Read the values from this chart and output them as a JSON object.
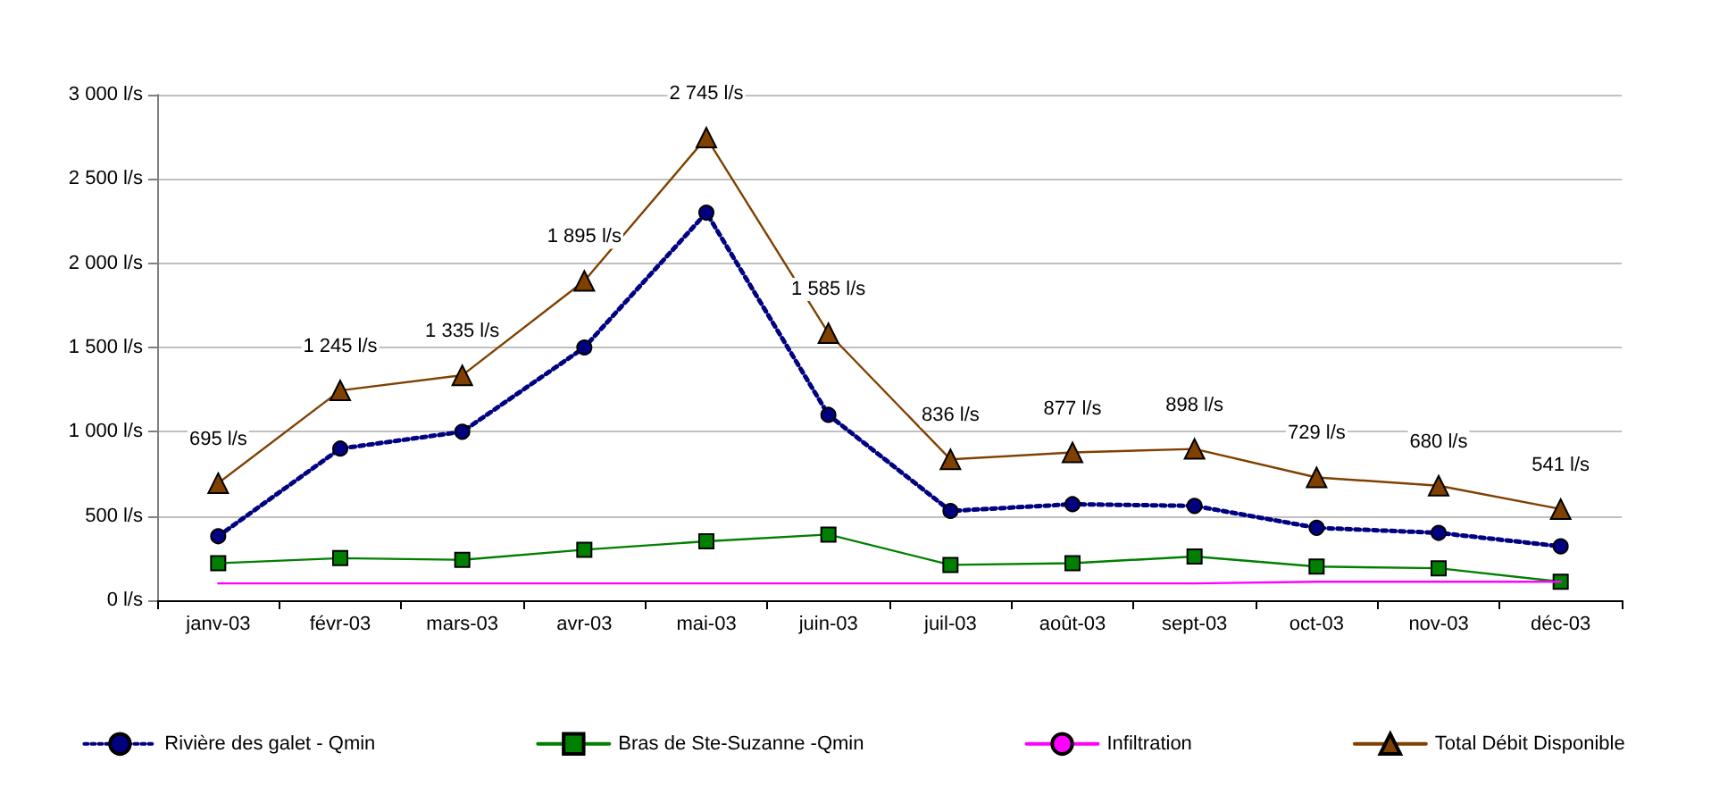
{
  "chart_data": {
    "type": "line",
    "categories": [
      "janv-03",
      "févr-03",
      "mars-03",
      "avr-03",
      "mai-03",
      "juin-03",
      "juil-03",
      "août-03",
      "sept-03",
      "oct-03",
      "nov-03",
      "déc-03"
    ],
    "series": [
      {
        "name": "Rivière des galet - Qmin",
        "color": "#000080",
        "marker": "circle",
        "line_style": "dotted",
        "values": [
          380,
          900,
          1000,
          1500,
          2300,
          1100,
          530,
          570,
          560,
          430,
          400,
          320
        ]
      },
      {
        "name": "Bras de Ste-Suzanne -Qmin",
        "color": "#008000",
        "marker": "square",
        "line_style": "solid",
        "values": [
          220,
          250,
          240,
          300,
          350,
          390,
          210,
          220,
          260,
          200,
          190,
          110
        ]
      },
      {
        "name": "Infiltration",
        "color": "#ff00ff",
        "marker": "none",
        "line_style": "solid",
        "values": [
          100,
          100,
          100,
          100,
          100,
          100,
          100,
          100,
          100,
          110,
          110,
          110
        ]
      },
      {
        "name": "Total Débit Disponible",
        "color": "#804000",
        "marker": "triangle",
        "line_style": "solid",
        "values": [
          695,
          1245,
          1335,
          1895,
          2745,
          1585,
          836,
          877,
          898,
          729,
          680,
          541
        ],
        "value_labels": [
          "695 l/s",
          "1 245 l/s",
          "1 335 l/s",
          "1 895 l/s",
          "2 745 l/s",
          "1 585 l/s",
          "836 l/s",
          "877 l/s",
          "898 l/s",
          "729 l/s",
          "680 l/s",
          "541 l/s"
        ]
      }
    ],
    "ylim": [
      0,
      3000
    ],
    "yticks": [
      {
        "value": 0,
        "label": "0 l/s"
      },
      {
        "value": 500,
        "label": "500 l/s"
      },
      {
        "value": 1000,
        "label": "1 000 l/s"
      },
      {
        "value": 1500,
        "label": "1 500 l/s"
      },
      {
        "value": 2000,
        "label": "2 000 l/s"
      },
      {
        "value": 2500,
        "label": "2 500 l/s"
      },
      {
        "value": 3000,
        "label": "3 000 l/s"
      }
    ],
    "grid": "y",
    "legend": "bottom"
  }
}
